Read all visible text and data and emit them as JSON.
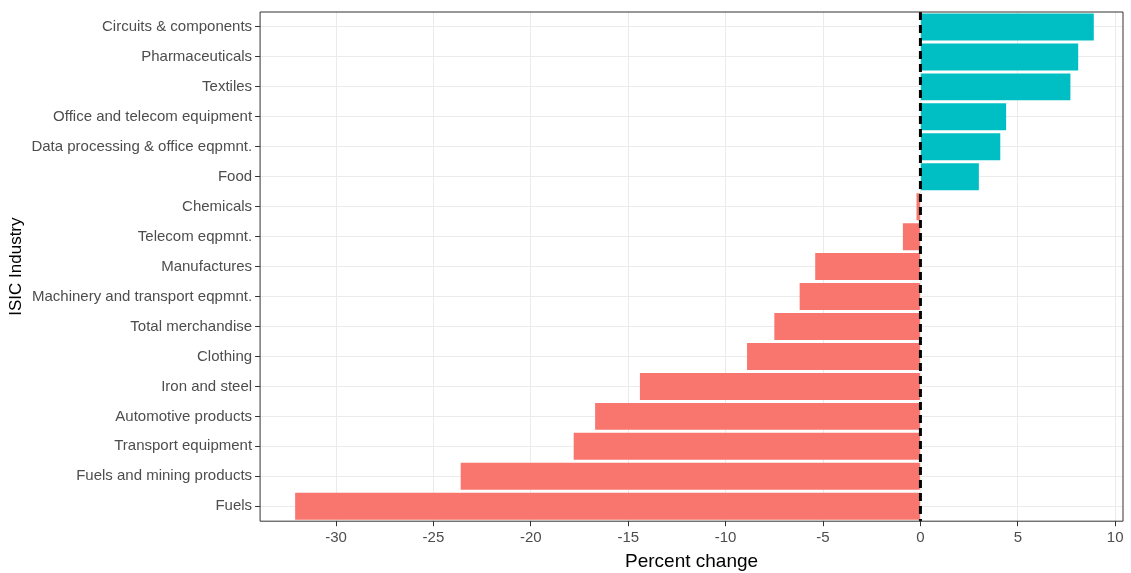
{
  "chart_data": {
    "type": "bar",
    "orientation": "horizontal",
    "xlabel": "Percent change",
    "ylabel": "ISIC Industry",
    "categories": [
      "Circuits & components",
      "Pharmaceuticals",
      "Textiles",
      "Office and telecom equipment",
      "Data processing & office eqpmnt.",
      "Food",
      "Chemicals",
      "Telecom eqpmnt.",
      "Manufactures",
      "Machinery and transport eqpmnt.",
      "Total merchandise",
      "Clothing",
      "Iron and steel",
      "Automotive products",
      "Transport equipment",
      "Fuels and mining products",
      "Fuels"
    ],
    "values": [
      8.9,
      8.1,
      7.7,
      4.4,
      4.1,
      3.0,
      -0.2,
      -0.9,
      -5.4,
      -6.2,
      -7.5,
      -8.9,
      -14.4,
      -16.7,
      -17.8,
      -23.6,
      -32.1
    ],
    "colors": [
      "#00bfc4",
      "#00bfc4",
      "#00bfc4",
      "#00bfc4",
      "#00bfc4",
      "#00bfc4",
      "#f8766d",
      "#f8766d",
      "#f8766d",
      "#f8766d",
      "#f8766d",
      "#f8766d",
      "#f8766d",
      "#f8766d",
      "#f8766d",
      "#f8766d",
      "#f8766d"
    ],
    "xlim": [
      -33.9,
      10.4
    ],
    "xticks": [
      -30,
      -25,
      -20,
      -15,
      -10,
      -5,
      0,
      5,
      10
    ],
    "grid": true,
    "ref_lines": [
      {
        "axis": "x",
        "value": 0,
        "color": "#000000",
        "line_style": "dashed"
      }
    ]
  }
}
